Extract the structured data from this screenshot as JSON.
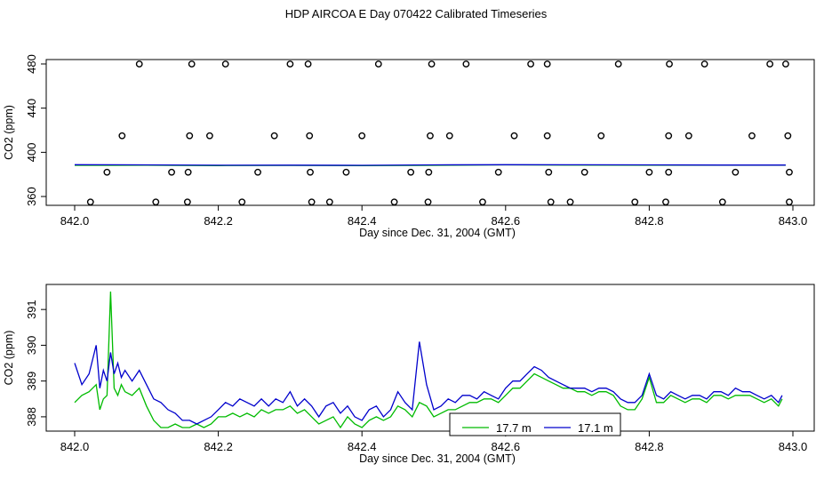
{
  "title": "HDP AIRCOA E  Day 070422  Calibrated Timeseries",
  "chart_data": [
    {
      "type": "scatter+line",
      "xlabel": "Day since Dec. 31, 2004 (GMT)",
      "ylabel": "CO2 (ppm)",
      "xlim": [
        842.0,
        843.0
      ],
      "ylim": [
        352,
        484
      ],
      "xticks": [
        "842.0",
        "842.2",
        "842.4",
        "842.6",
        "842.8",
        "843.0"
      ],
      "xtick_values": [
        842.0,
        842.2,
        842.4,
        842.6,
        842.8,
        843.0
      ],
      "yticks": [
        "360",
        "400",
        "440",
        "480"
      ],
      "ytick_values": [
        360,
        400,
        440,
        480
      ],
      "series": [
        {
          "color": "#000000",
          "style": "open-circle",
          "x": [
            842.09,
            842.163,
            842.21,
            842.3,
            842.325,
            842.423,
            842.497,
            842.545,
            842.635,
            842.658,
            842.757,
            842.828,
            842.877,
            842.968,
            842.99,
            842.066,
            842.16,
            842.188,
            842.278,
            842.327,
            842.4,
            842.495,
            842.522,
            842.612,
            842.658,
            842.733,
            842.827,
            842.855,
            842.943,
            842.993,
            842.045,
            842.135,
            842.158,
            842.255,
            842.328,
            842.378,
            842.468,
            842.493,
            842.59,
            842.66,
            842.71,
            842.8,
            842.827,
            842.92,
            842.995,
            842.022,
            842.113,
            842.157,
            842.233,
            842.33,
            842.355,
            842.445,
            842.492,
            842.568,
            842.663,
            842.69,
            842.78,
            842.823,
            842.902,
            842.995
          ],
          "y": [
            480,
            480,
            480,
            480,
            480,
            480,
            480,
            480,
            480,
            480,
            480,
            480,
            480,
            480,
            480,
            415,
            415,
            415,
            415,
            415,
            415,
            415,
            415,
            415,
            415,
            415,
            415,
            415,
            415,
            415,
            382,
            382,
            382,
            382,
            382,
            382,
            382,
            382,
            382,
            382,
            382,
            382,
            382,
            382,
            382,
            355,
            355,
            355,
            355,
            355,
            355,
            355,
            355,
            355,
            355,
            355,
            355,
            355,
            355,
            355
          ]
        },
        {
          "color": "#00bb00",
          "style": "line",
          "x": [
            842.0,
            842.1,
            842.2,
            842.3,
            842.4,
            842.5,
            842.6,
            842.7,
            842.8,
            842.9,
            842.99
          ],
          "y": [
            388.2,
            388.3,
            388.0,
            388.1,
            388.0,
            388.2,
            388.6,
            388.5,
            388.4,
            388.3,
            388.3
          ]
        },
        {
          "color": "#0000cc",
          "style": "line",
          "x": [
            842.0,
            842.1,
            842.2,
            842.3,
            842.4,
            842.5,
            842.6,
            842.7,
            842.8,
            842.9,
            842.99
          ],
          "y": [
            388.8,
            388.6,
            388.3,
            388.4,
            388.2,
            388.6,
            388.8,
            388.7,
            388.6,
            388.5,
            388.5
          ]
        }
      ]
    },
    {
      "type": "line",
      "xlabel": "Day since Dec. 31, 2004 (GMT)",
      "ylabel": "CO2 (ppm)",
      "xlim": [
        842.0,
        843.0
      ],
      "ylim": [
        387.6,
        391.7
      ],
      "xticks": [
        "842.0",
        "842.2",
        "842.4",
        "842.6",
        "842.8",
        "843.0"
      ],
      "xtick_values": [
        842.0,
        842.2,
        842.4,
        842.6,
        842.8,
        843.0
      ],
      "yticks": [
        "388",
        "389",
        "390",
        "391"
      ],
      "ytick_values": [
        388,
        389,
        390,
        391
      ],
      "legend": "bottom-center",
      "series": [
        {
          "name": "17.7 m",
          "color": "#00bb00",
          "x": [
            842.0,
            842.01,
            842.02,
            842.03,
            842.035,
            842.04,
            842.045,
            842.05,
            842.055,
            842.06,
            842.065,
            842.07,
            842.08,
            842.09,
            842.1,
            842.11,
            842.12,
            842.13,
            842.14,
            842.15,
            842.16,
            842.17,
            842.18,
            842.19,
            842.2,
            842.21,
            842.22,
            842.23,
            842.24,
            842.25,
            842.26,
            842.27,
            842.28,
            842.29,
            842.3,
            842.31,
            842.32,
            842.33,
            842.34,
            842.35,
            842.36,
            842.37,
            842.38,
            842.39,
            842.4,
            842.41,
            842.42,
            842.43,
            842.44,
            842.45,
            842.46,
            842.47,
            842.48,
            842.49,
            842.5,
            842.51,
            842.52,
            842.53,
            842.54,
            842.55,
            842.56,
            842.57,
            842.58,
            842.59,
            842.6,
            842.61,
            842.62,
            842.63,
            842.64,
            842.65,
            842.66,
            842.67,
            842.68,
            842.69,
            842.7,
            842.71,
            842.72,
            842.73,
            842.74,
            842.75,
            842.76,
            842.77,
            842.78,
            842.79,
            842.8,
            842.81,
            842.82,
            842.83,
            842.84,
            842.85,
            842.86,
            842.87,
            842.88,
            842.89,
            842.9,
            842.91,
            842.92,
            842.93,
            842.94,
            842.95,
            842.96,
            842.97,
            842.98,
            842.985
          ],
          "y": [
            388.4,
            388.6,
            388.7,
            388.9,
            388.2,
            388.5,
            388.6,
            391.5,
            388.8,
            388.6,
            388.9,
            388.7,
            388.6,
            388.8,
            388.3,
            387.9,
            387.7,
            387.7,
            387.8,
            387.7,
            387.7,
            387.8,
            387.7,
            387.8,
            388.0,
            388.0,
            388.1,
            388.0,
            388.1,
            388.0,
            388.2,
            388.1,
            388.2,
            388.2,
            388.3,
            388.1,
            388.2,
            388.0,
            387.8,
            387.9,
            388.0,
            387.7,
            388.0,
            387.8,
            387.7,
            387.9,
            388.0,
            387.9,
            388.0,
            388.3,
            388.2,
            388.0,
            388.4,
            388.3,
            388.0,
            388.1,
            388.2,
            388.2,
            388.3,
            388.4,
            388.4,
            388.5,
            388.5,
            388.4,
            388.6,
            388.8,
            388.8,
            389.0,
            389.2,
            389.1,
            389.0,
            388.9,
            388.8,
            388.8,
            388.7,
            388.7,
            388.6,
            388.7,
            388.7,
            388.6,
            388.3,
            388.2,
            388.2,
            388.5,
            389.1,
            388.4,
            388.4,
            388.6,
            388.5,
            388.4,
            388.5,
            388.5,
            388.4,
            388.6,
            388.6,
            388.5,
            388.6,
            388.6,
            388.6,
            388.5,
            388.4,
            388.5,
            388.3,
            388.5
          ]
        },
        {
          "name": "17.1 m",
          "color": "#0000cc",
          "x": [
            842.0,
            842.01,
            842.02,
            842.03,
            842.035,
            842.04,
            842.045,
            842.05,
            842.055,
            842.06,
            842.065,
            842.07,
            842.08,
            842.09,
            842.1,
            842.11,
            842.12,
            842.13,
            842.14,
            842.15,
            842.16,
            842.17,
            842.18,
            842.19,
            842.2,
            842.21,
            842.22,
            842.23,
            842.24,
            842.25,
            842.26,
            842.27,
            842.28,
            842.29,
            842.3,
            842.31,
            842.32,
            842.33,
            842.34,
            842.35,
            842.36,
            842.37,
            842.38,
            842.39,
            842.4,
            842.41,
            842.42,
            842.43,
            842.44,
            842.45,
            842.46,
            842.47,
            842.48,
            842.49,
            842.5,
            842.51,
            842.52,
            842.53,
            842.54,
            842.55,
            842.56,
            842.57,
            842.58,
            842.59,
            842.6,
            842.61,
            842.62,
            842.63,
            842.64,
            842.65,
            842.66,
            842.67,
            842.68,
            842.69,
            842.7,
            842.71,
            842.72,
            842.73,
            842.74,
            842.75,
            842.76,
            842.77,
            842.78,
            842.79,
            842.8,
            842.81,
            842.82,
            842.83,
            842.84,
            842.85,
            842.86,
            842.87,
            842.88,
            842.89,
            842.9,
            842.91,
            842.92,
            842.93,
            842.94,
            842.95,
            842.96,
            842.97,
            842.98,
            842.985
          ],
          "y": [
            389.5,
            388.9,
            389.2,
            390.0,
            388.8,
            389.3,
            389.0,
            389.8,
            389.2,
            389.5,
            389.1,
            389.3,
            389.0,
            389.3,
            388.9,
            388.5,
            388.4,
            388.2,
            388.1,
            387.9,
            387.9,
            387.8,
            387.9,
            388.0,
            388.2,
            388.4,
            388.3,
            388.5,
            388.4,
            388.3,
            388.5,
            388.3,
            388.5,
            388.4,
            388.7,
            388.3,
            388.5,
            388.3,
            388.0,
            388.3,
            388.4,
            388.1,
            388.3,
            388.0,
            387.9,
            388.2,
            388.3,
            388.0,
            388.2,
            388.7,
            388.4,
            388.2,
            390.1,
            388.9,
            388.2,
            388.3,
            388.5,
            388.4,
            388.6,
            388.6,
            388.5,
            388.7,
            388.6,
            388.5,
            388.8,
            389.0,
            389.0,
            389.2,
            389.4,
            389.3,
            389.1,
            389.0,
            388.9,
            388.8,
            388.8,
            388.8,
            388.7,
            388.8,
            388.8,
            388.7,
            388.5,
            388.4,
            388.4,
            388.6,
            389.2,
            388.6,
            388.5,
            388.7,
            388.6,
            388.5,
            388.6,
            388.6,
            388.5,
            388.7,
            388.7,
            388.6,
            388.8,
            388.7,
            388.7,
            388.6,
            388.5,
            388.6,
            388.4,
            388.6
          ]
        }
      ]
    }
  ]
}
